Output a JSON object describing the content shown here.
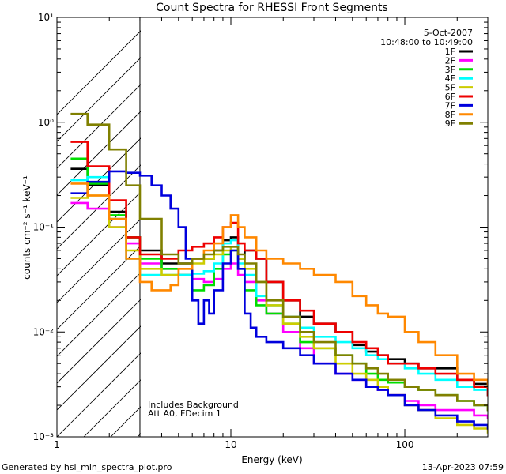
{
  "chart_data": {
    "type": "line",
    "title": "Count Spectra for RHESSI Front Segments",
    "xlabel": "Energy (keV)",
    "ylabel": "counts cm⁻² s⁻¹ keV⁻¹",
    "xscale": "log",
    "yscale": "log",
    "xlim": [
      1,
      300
    ],
    "ylim": [
      0.001,
      10
    ],
    "x_ticks": [
      {
        "value": 1,
        "label": "1"
      },
      {
        "value": 10,
        "label": "10"
      },
      {
        "value": 100,
        "label": "100"
      }
    ],
    "y_ticks": [
      {
        "value": 10,
        "label": "10¹"
      },
      {
        "value": 1,
        "label": "10⁰"
      },
      {
        "value": 0.1,
        "label": "10⁻¹"
      },
      {
        "value": 0.01,
        "label": "10⁻²"
      },
      {
        "value": 0.001,
        "label": "10⁻³"
      }
    ],
    "date": "5-Oct-2007",
    "time_range": "10:48:00 to 10:49:00",
    "excluded_region": [
      1,
      3
    ],
    "annotations": [
      "Includes Background",
      "Att A0, FDecim 1"
    ],
    "legend_position": "top-right",
    "series": [
      {
        "name": "1F",
        "color": "#000000",
        "points": [
          [
            1.2,
            0.36
          ],
          [
            1.5,
            0.25
          ],
          [
            2,
            0.14
          ],
          [
            2.5,
            0.08
          ],
          [
            3,
            0.06
          ],
          [
            4,
            0.045
          ],
          [
            5,
            0.045
          ],
          [
            6,
            0.05
          ],
          [
            7,
            0.05
          ],
          [
            8,
            0.06
          ],
          [
            9,
            0.075
          ],
          [
            10,
            0.08
          ],
          [
            11,
            0.05
          ],
          [
            12,
            0.06
          ],
          [
            14,
            0.05
          ],
          [
            16,
            0.03
          ],
          [
            20,
            0.02
          ],
          [
            25,
            0.014
          ],
          [
            30,
            0.012
          ],
          [
            40,
            0.01
          ],
          [
            50,
            0.0075
          ],
          [
            60,
            0.0065
          ],
          [
            70,
            0.006
          ],
          [
            80,
            0.0055
          ],
          [
            100,
            0.005
          ],
          [
            120,
            0.0045
          ],
          [
            150,
            0.0045
          ],
          [
            200,
            0.0035
          ],
          [
            250,
            0.0032
          ],
          [
            300,
            0.0025
          ]
        ]
      },
      {
        "name": "2F",
        "color": "#ff00ff",
        "points": [
          [
            1.2,
            0.17
          ],
          [
            1.5,
            0.15
          ],
          [
            2,
            0.1
          ],
          [
            2.5,
            0.07
          ],
          [
            3,
            0.045
          ],
          [
            4,
            0.04
          ],
          [
            5,
            0.035
          ],
          [
            6,
            0.032
          ],
          [
            7,
            0.03
          ],
          [
            8,
            0.032
          ],
          [
            9,
            0.04
          ],
          [
            10,
            0.045
          ],
          [
            11,
            0.035
          ],
          [
            12,
            0.03
          ],
          [
            14,
            0.02
          ],
          [
            16,
            0.015
          ],
          [
            20,
            0.01
          ],
          [
            25,
            0.007
          ],
          [
            30,
            0.005
          ],
          [
            40,
            0.004
          ],
          [
            50,
            0.0035
          ],
          [
            60,
            0.003
          ],
          [
            70,
            0.0028
          ],
          [
            80,
            0.0025
          ],
          [
            100,
            0.0022
          ],
          [
            120,
            0.002
          ],
          [
            150,
            0.0018
          ],
          [
            200,
            0.0018
          ],
          [
            250,
            0.0016
          ],
          [
            300,
            0.0015
          ]
        ]
      },
      {
        "name": "3F",
        "color": "#00dd00",
        "points": [
          [
            1.2,
            0.45
          ],
          [
            1.5,
            0.26
          ],
          [
            2,
            0.13
          ],
          [
            2.5,
            0.08
          ],
          [
            3,
            0.05
          ],
          [
            4,
            0.04
          ],
          [
            5,
            0.035
          ],
          [
            6,
            0.025
          ],
          [
            7,
            0.028
          ],
          [
            8,
            0.04
          ],
          [
            9,
            0.055
          ],
          [
            10,
            0.06
          ],
          [
            11,
            0.04
          ],
          [
            12,
            0.025
          ],
          [
            14,
            0.018
          ],
          [
            16,
            0.015
          ],
          [
            20,
            0.012
          ],
          [
            25,
            0.008
          ],
          [
            30,
            0.007
          ],
          [
            40,
            0.006
          ],
          [
            50,
            0.005
          ],
          [
            60,
            0.004
          ],
          [
            70,
            0.0035
          ],
          [
            80,
            0.0033
          ],
          [
            100,
            0.003
          ],
          [
            120,
            0.0028
          ],
          [
            150,
            0.0025
          ],
          [
            200,
            0.0022
          ],
          [
            250,
            0.002
          ],
          [
            300,
            0.0018
          ]
        ]
      },
      {
        "name": "4F",
        "color": "#00ffff",
        "points": [
          [
            1.2,
            0.28
          ],
          [
            1.5,
            0.3
          ],
          [
            2,
            0.12
          ],
          [
            2.5,
            0.05
          ],
          [
            3,
            0.035
          ],
          [
            4,
            0.035
          ],
          [
            5,
            0.035
          ],
          [
            6,
            0.036
          ],
          [
            7,
            0.038
          ],
          [
            8,
            0.045
          ],
          [
            9,
            0.07
          ],
          [
            10,
            0.075
          ],
          [
            11,
            0.045
          ],
          [
            12,
            0.035
          ],
          [
            14,
            0.022
          ],
          [
            16,
            0.018
          ],
          [
            20,
            0.014
          ],
          [
            25,
            0.011
          ],
          [
            30,
            0.009
          ],
          [
            40,
            0.008
          ],
          [
            50,
            0.007
          ],
          [
            60,
            0.006
          ],
          [
            70,
            0.0055
          ],
          [
            80,
            0.005
          ],
          [
            100,
            0.0045
          ],
          [
            120,
            0.004
          ],
          [
            150,
            0.0035
          ],
          [
            200,
            0.003
          ],
          [
            250,
            0.0028
          ],
          [
            300,
            0.0025
          ]
        ]
      },
      {
        "name": "5F",
        "color": "#cccc00",
        "points": [
          [
            1.2,
            0.19
          ],
          [
            1.5,
            0.2
          ],
          [
            2,
            0.1
          ],
          [
            2.5,
            0.06
          ],
          [
            3,
            0.04
          ],
          [
            4,
            0.035
          ],
          [
            5,
            0.04
          ],
          [
            6,
            0.045
          ],
          [
            7,
            0.05
          ],
          [
            8,
            0.055
          ],
          [
            9,
            0.06
          ],
          [
            10,
            0.065
          ],
          [
            11,
            0.05
          ],
          [
            12,
            0.04
          ],
          [
            14,
            0.03
          ],
          [
            16,
            0.018
          ],
          [
            20,
            0.012
          ],
          [
            25,
            0.009
          ],
          [
            30,
            0.007
          ],
          [
            40,
            0.005
          ],
          [
            50,
            0.004
          ],
          [
            60,
            0.0035
          ],
          [
            70,
            0.003
          ],
          [
            80,
            0.0025
          ],
          [
            100,
            0.002
          ],
          [
            120,
            0.0018
          ],
          [
            150,
            0.0015
          ],
          [
            200,
            0.0013
          ],
          [
            250,
            0.0012
          ],
          [
            300,
            0.0011
          ]
        ]
      },
      {
        "name": "6F",
        "color": "#ee0000",
        "points": [
          [
            1.2,
            0.65
          ],
          [
            1.5,
            0.38
          ],
          [
            2,
            0.18
          ],
          [
            2.5,
            0.08
          ],
          [
            3,
            0.055
          ],
          [
            4,
            0.05
          ],
          [
            5,
            0.06
          ],
          [
            6,
            0.065
          ],
          [
            7,
            0.07
          ],
          [
            8,
            0.08
          ],
          [
            9,
            0.1
          ],
          [
            10,
            0.11
          ],
          [
            11,
            0.07
          ],
          [
            12,
            0.06
          ],
          [
            14,
            0.05
          ],
          [
            16,
            0.03
          ],
          [
            20,
            0.02
          ],
          [
            25,
            0.016
          ],
          [
            30,
            0.012
          ],
          [
            40,
            0.01
          ],
          [
            50,
            0.008
          ],
          [
            60,
            0.007
          ],
          [
            70,
            0.006
          ],
          [
            80,
            0.005
          ],
          [
            100,
            0.005
          ],
          [
            120,
            0.0045
          ],
          [
            150,
            0.004
          ],
          [
            200,
            0.0035
          ],
          [
            250,
            0.003
          ],
          [
            300,
            0.0025
          ]
        ]
      },
      {
        "name": "7F",
        "color": "#0000dd",
        "points": [
          [
            1.2,
            0.21
          ],
          [
            1.5,
            0.27
          ],
          [
            2,
            0.34
          ],
          [
            2.5,
            0.33
          ],
          [
            3,
            0.31
          ],
          [
            3.5,
            0.25
          ],
          [
            4,
            0.2
          ],
          [
            4.5,
            0.15
          ],
          [
            5,
            0.1
          ],
          [
            5.5,
            0.05
          ],
          [
            6,
            0.02
          ],
          [
            6.5,
            0.012
          ],
          [
            7,
            0.02
          ],
          [
            7.5,
            0.015
          ],
          [
            8,
            0.025
          ],
          [
            9,
            0.045
          ],
          [
            10,
            0.06
          ],
          [
            11,
            0.04
          ],
          [
            12,
            0.015
          ],
          [
            13,
            0.011
          ],
          [
            14,
            0.009
          ],
          [
            16,
            0.008
          ],
          [
            20,
            0.007
          ],
          [
            25,
            0.006
          ],
          [
            30,
            0.005
          ],
          [
            40,
            0.004
          ],
          [
            50,
            0.0035
          ],
          [
            60,
            0.003
          ],
          [
            70,
            0.0028
          ],
          [
            80,
            0.0025
          ],
          [
            100,
            0.002
          ],
          [
            120,
            0.0018
          ],
          [
            150,
            0.0016
          ],
          [
            200,
            0.0014
          ],
          [
            250,
            0.0013
          ],
          [
            300,
            0.0012
          ]
        ]
      },
      {
        "name": "8F",
        "color": "#ff8800",
        "points": [
          [
            1.2,
            0.26
          ],
          [
            1.5,
            0.2
          ],
          [
            2,
            0.12
          ],
          [
            2.5,
            0.05
          ],
          [
            3,
            0.03
          ],
          [
            3.5,
            0.025
          ],
          [
            4,
            0.025
          ],
          [
            4.5,
            0.028
          ],
          [
            5,
            0.04
          ],
          [
            6,
            0.05
          ],
          [
            7,
            0.06
          ],
          [
            8,
            0.07
          ],
          [
            9,
            0.1
          ],
          [
            10,
            0.13
          ],
          [
            11,
            0.1
          ],
          [
            12,
            0.08
          ],
          [
            14,
            0.06
          ],
          [
            16,
            0.05
          ],
          [
            20,
            0.045
          ],
          [
            25,
            0.04
          ],
          [
            30,
            0.035
          ],
          [
            40,
            0.03
          ],
          [
            50,
            0.022
          ],
          [
            60,
            0.018
          ],
          [
            70,
            0.015
          ],
          [
            80,
            0.014
          ],
          [
            100,
            0.01
          ],
          [
            120,
            0.008
          ],
          [
            150,
            0.006
          ],
          [
            200,
            0.004
          ],
          [
            250,
            0.0035
          ],
          [
            300,
            0.003
          ]
        ]
      },
      {
        "name": "9F",
        "color": "#808000",
        "points": [
          [
            1.2,
            1.2
          ],
          [
            1.5,
            0.95
          ],
          [
            2,
            0.55
          ],
          [
            2.5,
            0.25
          ],
          [
            3,
            0.12
          ],
          [
            4,
            0.055
          ],
          [
            5,
            0.045
          ],
          [
            6,
            0.05
          ],
          [
            7,
            0.055
          ],
          [
            8,
            0.06
          ],
          [
            9,
            0.065
          ],
          [
            10,
            0.065
          ],
          [
            11,
            0.055
          ],
          [
            12,
            0.045
          ],
          [
            14,
            0.03
          ],
          [
            16,
            0.02
          ],
          [
            20,
            0.014
          ],
          [
            25,
            0.01
          ],
          [
            30,
            0.008
          ],
          [
            40,
            0.006
          ],
          [
            50,
            0.005
          ],
          [
            60,
            0.0045
          ],
          [
            70,
            0.004
          ],
          [
            80,
            0.0035
          ],
          [
            100,
            0.003
          ],
          [
            120,
            0.0028
          ],
          [
            150,
            0.0025
          ],
          [
            200,
            0.0022
          ],
          [
            250,
            0.002
          ],
          [
            300,
            0.0018
          ]
        ]
      }
    ]
  },
  "footer": {
    "generated_by": "Generated by hsi_min_spectra_plot.pro",
    "timestamp": "13-Apr-2023 07:59"
  }
}
